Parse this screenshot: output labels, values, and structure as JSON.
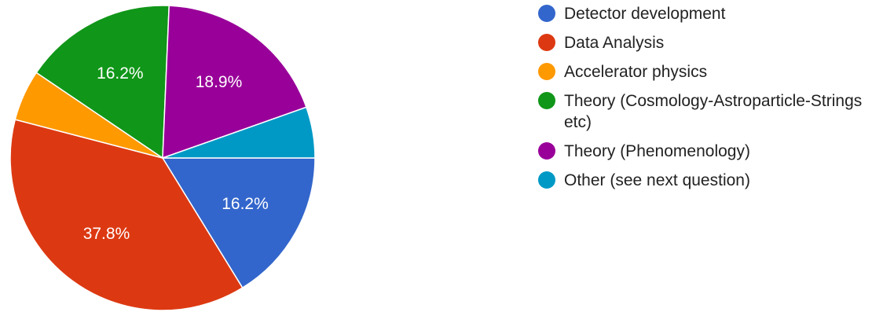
{
  "chart_data": {
    "type": "pie",
    "title": "",
    "legend_position": "right",
    "slices": [
      {
        "label": "Detector development",
        "value": 16.2,
        "display": "16.2%",
        "color": "#3366CC"
      },
      {
        "label": "Data Analysis",
        "value": 37.8,
        "display": "37.8%",
        "color": "#DC3912"
      },
      {
        "label": "Accelerator physics",
        "value": 5.4,
        "display": "",
        "color": "#FF9900"
      },
      {
        "label": "Theory (Cosmology-Astroparticle-Strings etc)",
        "value": 16.2,
        "display": "16.2%",
        "color": "#109618"
      },
      {
        "label": "Theory (Phenomenology)",
        "value": 18.9,
        "display": "18.9%",
        "color": "#990099"
      },
      {
        "label": "Other (see next question)",
        "value": 5.4,
        "display": "",
        "color": "#0099C6"
      }
    ]
  }
}
